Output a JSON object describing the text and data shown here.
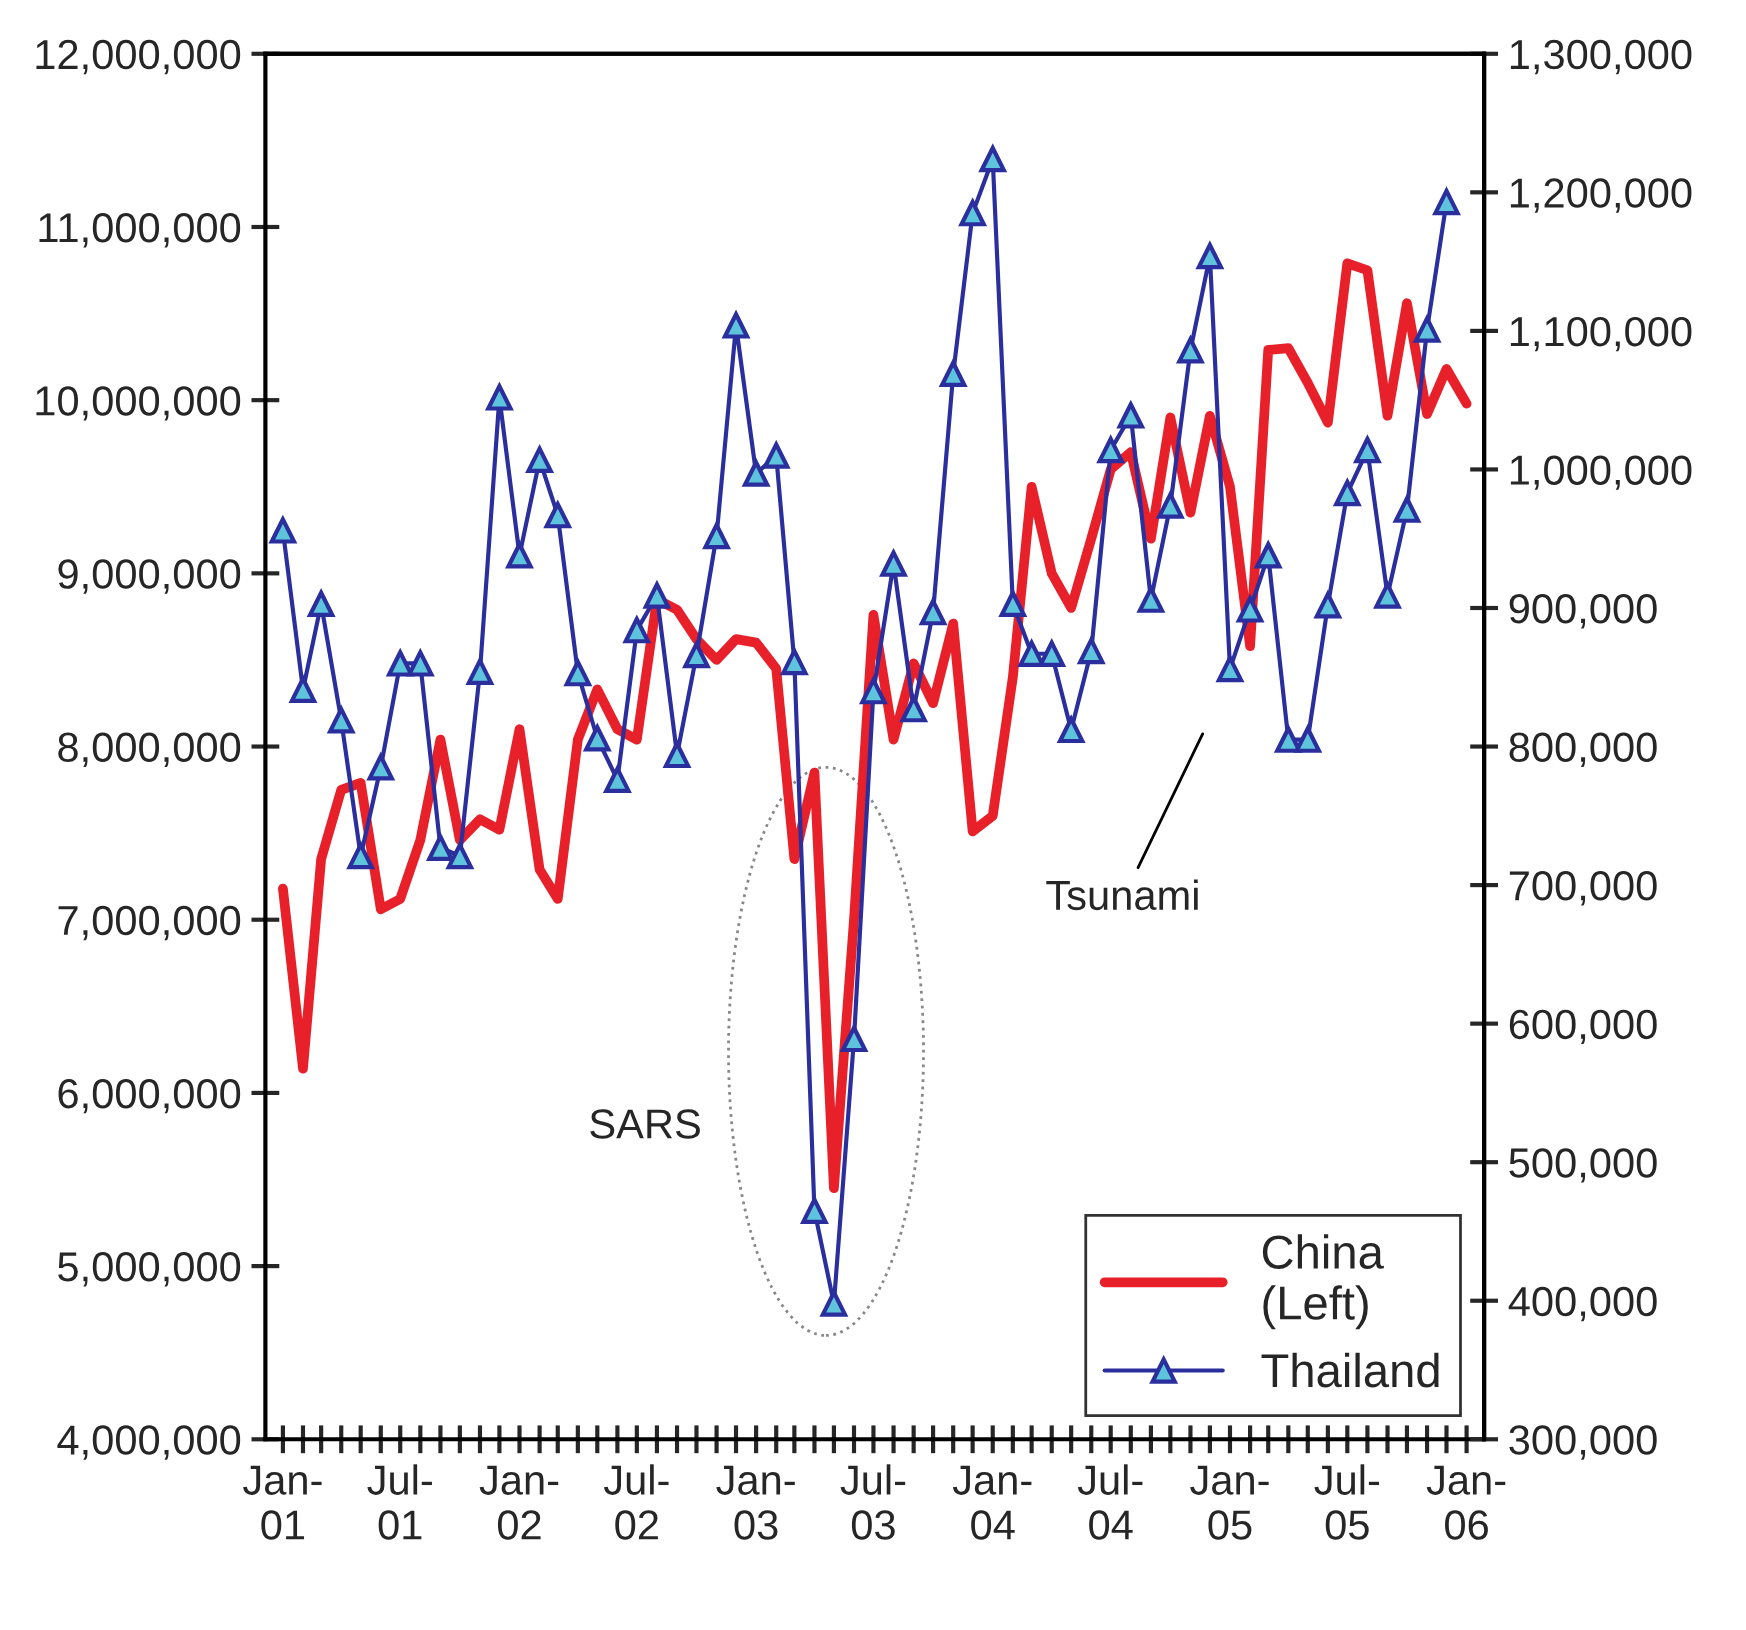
{
  "chart_data": {
    "type": "line",
    "series": [
      {
        "name": "China\n(Left)",
        "color": "#e8202a",
        "marker": "none",
        "x": [
          "2001-01",
          "2001-02",
          "2001-03",
          "2001-04",
          "2001-05",
          "2001-06",
          "2001-07",
          "2001-08",
          "2001-09",
          "2001-10",
          "2001-11",
          "2001-12",
          "2002-01",
          "2002-02",
          "2002-03",
          "2002-04",
          "2002-05",
          "2002-06",
          "2002-07",
          "2002-08",
          "2002-09",
          "2002-10",
          "2002-11",
          "2002-12",
          "2003-01",
          "2003-02",
          "2003-03",
          "2003-04",
          "2003-05",
          "2003-06",
          "2003-07",
          "2003-08",
          "2003-09",
          "2003-10",
          "2003-11",
          "2003-12",
          "2004-01",
          "2004-02",
          "2004-03",
          "2004-04",
          "2004-05",
          "2004-06",
          "2004-07",
          "2004-08",
          "2004-09",
          "2004-10",
          "2004-11",
          "2004-12",
          "2005-01",
          "2005-02",
          "2005-03",
          "2005-04",
          "2005-05",
          "2005-06",
          "2005-07",
          "2005-08",
          "2005-09",
          "2005-10",
          "2005-11",
          "2005-12",
          "2006-01"
        ],
        "values": [
          7180000,
          6140000,
          7350000,
          7750000,
          7790000,
          7060000,
          7120000,
          7460000,
          8040000,
          7460000,
          7580000,
          7520000,
          8100000,
          7290000,
          7120000,
          8040000,
          8330000,
          8100000,
          8040000,
          8850000,
          8790000,
          8620000,
          8500000,
          8620000,
          8600000,
          8450000,
          7350000,
          7850000,
          5450000,
          7000000,
          8760000,
          8040000,
          8480000,
          8250000,
          8710000,
          7510000,
          7600000,
          8400000,
          9500000,
          9000000,
          8800000,
          9200000,
          9600000,
          9700000,
          9200000,
          9900000,
          9350000,
          9910000,
          9500000,
          8580000,
          10290000,
          10300000,
          10100000,
          9870000,
          10790000,
          10750000,
          9910000,
          10560000,
          9920000,
          10180000,
          9980000
        ]
      },
      {
        "name": "Thailand",
        "color": "#2b2f9e",
        "marker": "triangle",
        "axis": "y2",
        "x": [
          "2001-01",
          "2001-02",
          "2001-03",
          "2001-04",
          "2001-05",
          "2001-06",
          "2001-07",
          "2001-08",
          "2001-09",
          "2001-10",
          "2001-11",
          "2001-12",
          "2002-01",
          "2002-02",
          "2002-03",
          "2002-04",
          "2002-05",
          "2002-06",
          "2002-07",
          "2002-08",
          "2002-09",
          "2002-10",
          "2002-11",
          "2002-12",
          "2003-01",
          "2003-02",
          "2003-03",
          "2003-04",
          "2003-05",
          "2003-06",
          "2003-07",
          "2003-08",
          "2003-09",
          "2003-10",
          "2003-11",
          "2003-12",
          "2004-01",
          "2004-02",
          "2004-03",
          "2004-04",
          "2004-05",
          "2004-06",
          "2004-07",
          "2004-08",
          "2004-09",
          "2004-10",
          "2004-11",
          "2004-12",
          "2005-01",
          "2005-02",
          "2005-03",
          "2005-04",
          "2005-05",
          "2005-06",
          "2005-07",
          "2005-08",
          "2005-09",
          "2005-10",
          "2005-11",
          "2005-12"
        ],
        "values": [
          956000,
          841000,
          903000,
          819000,
          721000,
          785000,
          860000,
          860000,
          727000,
          721000,
          854000,
          1052000,
          938000,
          1007000,
          967000,
          853000,
          806000,
          776000,
          884000,
          909000,
          794000,
          866000,
          952000,
          1104000,
          997000,
          1010000,
          861000,
          465000,
          398000,
          589000,
          840000,
          932000,
          827000,
          897000,
          1069000,
          1185000,
          1224000,
          903000,
          867000,
          867000,
          812000,
          869000,
          1014000,
          1039000,
          906000,
          974000,
          1086000,
          1154000,
          856000,
          899000,
          938000,
          805000,
          805000,
          902000,
          983000,
          1014000,
          909000,
          971000,
          1101000,
          1193000
        ]
      }
    ],
    "xlim": [
      "2000-12-05",
      "2006-01-28"
    ],
    "xticks": [
      {
        "value": "2001-01",
        "label": "Jan-\n01"
      },
      {
        "value": "2001-02",
        "label": null
      },
      {
        "value": "2001-03",
        "label": null
      },
      {
        "value": "2001-04",
        "label": null
      },
      {
        "value": "2001-05",
        "label": null
      },
      {
        "value": "2001-06",
        "label": null
      },
      {
        "value": "2001-07",
        "label": "Jul-\n01"
      },
      {
        "value": "2001-08",
        "label": null
      },
      {
        "value": "2001-09",
        "label": null
      },
      {
        "value": "2001-10",
        "label": null
      },
      {
        "value": "2001-11",
        "label": null
      },
      {
        "value": "2001-12",
        "label": null
      },
      {
        "value": "2002-01",
        "label": "Jan-\n02"
      },
      {
        "value": "2002-02",
        "label": null
      },
      {
        "value": "2002-03",
        "label": null
      },
      {
        "value": "2002-04",
        "label": null
      },
      {
        "value": "2002-05",
        "label": null
      },
      {
        "value": "2002-06",
        "label": null
      },
      {
        "value": "2002-07",
        "label": "Jul-\n02"
      },
      {
        "value": "2002-08",
        "label": null
      },
      {
        "value": "2002-09",
        "label": null
      },
      {
        "value": "2002-10",
        "label": null
      },
      {
        "value": "2002-11",
        "label": null
      },
      {
        "value": "2002-12",
        "label": null
      },
      {
        "value": "2003-01",
        "label": "Jan-\n03"
      },
      {
        "value": "2003-02",
        "label": null
      },
      {
        "value": "2003-03",
        "label": null
      },
      {
        "value": "2003-04",
        "label": null
      },
      {
        "value": "2003-05",
        "label": null
      },
      {
        "value": "2003-06",
        "label": null
      },
      {
        "value": "2003-07",
        "label": "Jul-\n03"
      },
      {
        "value": "2003-08",
        "label": null
      },
      {
        "value": "2003-09",
        "label": null
      },
      {
        "value": "2003-10",
        "label": null
      },
      {
        "value": "2003-11",
        "label": null
      },
      {
        "value": "2003-12",
        "label": null
      },
      {
        "value": "2004-01",
        "label": "Jan-\n04"
      },
      {
        "value": "2004-02",
        "label": null
      },
      {
        "value": "2004-03",
        "label": null
      },
      {
        "value": "2004-04",
        "label": null
      },
      {
        "value": "2004-05",
        "label": null
      },
      {
        "value": "2004-06",
        "label": null
      },
      {
        "value": "2004-07",
        "label": "Jul-\n04"
      },
      {
        "value": "2004-08",
        "label": null
      },
      {
        "value": "2004-09",
        "label": null
      },
      {
        "value": "2004-10",
        "label": null
      },
      {
        "value": "2004-11",
        "label": null
      },
      {
        "value": "2004-12",
        "label": null
      },
      {
        "value": "2005-01",
        "label": "Jan-\n05"
      },
      {
        "value": "2005-02",
        "label": null
      },
      {
        "value": "2005-03",
        "label": null
      },
      {
        "value": "2005-04",
        "label": null
      },
      {
        "value": "2005-05",
        "label": null
      },
      {
        "value": "2005-06",
        "label": null
      },
      {
        "value": "2005-07",
        "label": "Jul-\n05"
      },
      {
        "value": "2005-08",
        "label": null
      },
      {
        "value": "2005-09",
        "label": null
      },
      {
        "value": "2005-10",
        "label": null
      },
      {
        "value": "2005-11",
        "label": null
      },
      {
        "value": "2005-12",
        "label": null
      },
      {
        "value": "2006-01",
        "label": "Jan-\n06"
      }
    ],
    "ylim": [
      4000000,
      12000000
    ],
    "yticks": [
      {
        "value": 4000000,
        "label": "4,000,000"
      },
      {
        "value": 5000000,
        "label": "5,000,000"
      },
      {
        "value": 6000000,
        "label": "6,000,000"
      },
      {
        "value": 7000000,
        "label": "7,000,000"
      },
      {
        "value": 8000000,
        "label": "8,000,000"
      },
      {
        "value": 9000000,
        "label": "9,000,000"
      },
      {
        "value": 10000000,
        "label": "10,000,000"
      },
      {
        "value": 11000000,
        "label": "11,000,000"
      },
      {
        "value": 12000000,
        "label": "12,000,000"
      }
    ],
    "y2lim": [
      300000,
      1300000
    ],
    "y2ticks": [
      {
        "value": 300000,
        "label": "300,000"
      },
      {
        "value": 400000,
        "label": "400,000"
      },
      {
        "value": 500000,
        "label": "500,000"
      },
      {
        "value": 600000,
        "label": "600,000"
      },
      {
        "value": 700000,
        "label": "700,000"
      },
      {
        "value": 800000,
        "label": "800,000"
      },
      {
        "value": 900000,
        "label": "900,000"
      },
      {
        "value": 1000000,
        "label": "1,000,000"
      },
      {
        "value": 1100000,
        "label": "1,100,000"
      },
      {
        "value": 1200000,
        "label": "1,200,000"
      },
      {
        "value": 1300000,
        "label": "1,300,000"
      }
    ],
    "annotations": [
      "SARS",
      "Tsunami"
    ],
    "grid": false,
    "legend": "bottom right",
    "line_style": "solid"
  }
}
